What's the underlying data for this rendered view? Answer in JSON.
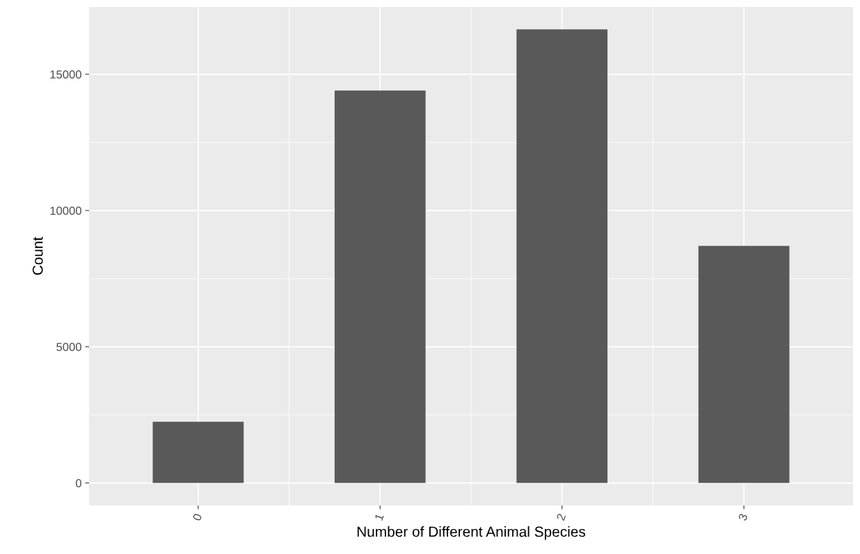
{
  "chart_data": {
    "type": "bar",
    "xlabel": "Number of Different Animal Species",
    "ylabel": "Count",
    "categories": [
      "0",
      "1",
      "2",
      "3"
    ],
    "values": [
      2250,
      14400,
      16650,
      8700
    ],
    "color": "#595959",
    "ylim": [
      -820,
      17470
    ],
    "yticks": [
      0,
      5000,
      10000,
      15000
    ],
    "grid": true
  }
}
